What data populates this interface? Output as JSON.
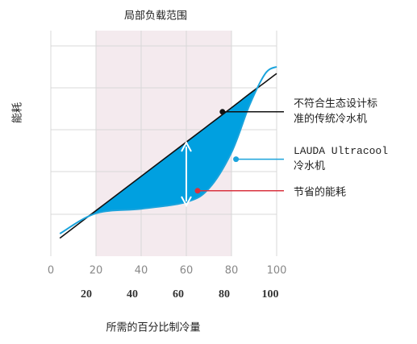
{
  "chart_data": {
    "type": "line",
    "title": "局部负载范围",
    "y_label": "能耗",
    "x_label": "所需的百分比制冷量",
    "x": [
      4,
      20,
      40,
      60,
      70,
      80,
      88,
      95,
      100
    ],
    "series": [
      {
        "name": "不符合生态设计标准的传统冷水机",
        "color": "#111111",
        "values": [
          8,
          20.2,
          35.4,
          50.6,
          58.2,
          65.8,
          72,
          77.2,
          81
        ]
      },
      {
        "name": "LAUDA Ultracool 冷水机",
        "color": "#1aa3dc",
        "values": [
          10,
          19,
          21,
          24,
          30,
          46,
          67,
          81,
          84
        ]
      }
    ],
    "fill_color": "#00a0e0",
    "xlim": [
      0,
      100
    ],
    "ylim": [
      0,
      100
    ],
    "xticks": [
      0,
      20,
      40,
      60,
      80,
      100
    ],
    "secondary_xticks": [
      20,
      40,
      60,
      80,
      100
    ],
    "highlight_range": [
      20,
      80
    ],
    "highlight_color": "#f4eaee",
    "grid": true,
    "annotations": [
      {
        "lines": [
          "不符合生态设计标",
          "准的传统冷水机"
        ],
        "x": 76,
        "y": 64,
        "color": "#111111"
      },
      {
        "lines": [
          "LAUDA Ultracool",
          "冷水机"
        ],
        "x": 82,
        "y": 43,
        "color": "#1aa3dc"
      },
      {
        "lines": [
          "节省的能耗"
        ],
        "x": 65,
        "y": 29,
        "color": "#d9333f"
      }
    ]
  }
}
